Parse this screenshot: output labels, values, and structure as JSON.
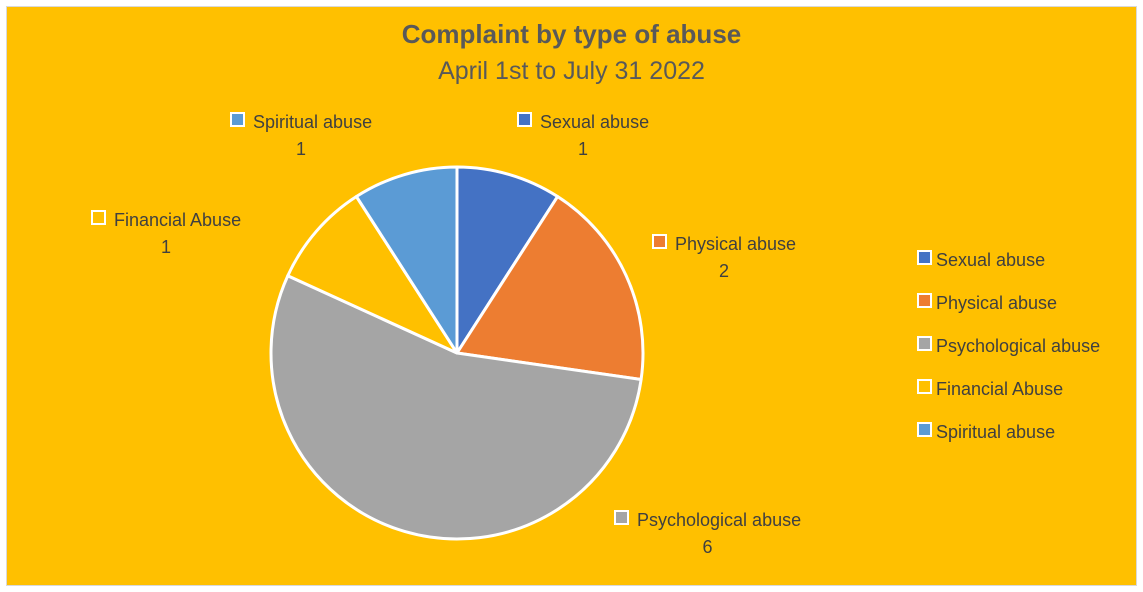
{
  "chart_data": {
    "type": "pie",
    "title": "Complaint by type of abuse",
    "subtitle": "April 1st to July 31 2022",
    "categories": [
      "Sexual abuse",
      "Physical abuse",
      "Psychological abuse",
      "Financial Abuse",
      "Spiritual abuse"
    ],
    "values": [
      1,
      2,
      6,
      1,
      1
    ],
    "colors": [
      "#4472c4",
      "#ed7d31",
      "#a5a5a5",
      "#ffc000",
      "#5b9bd5"
    ],
    "background_color": "#ffc000",
    "slice_border_color": "#ffffff",
    "legend_position": "right",
    "data_labels": "category name and value"
  }
}
